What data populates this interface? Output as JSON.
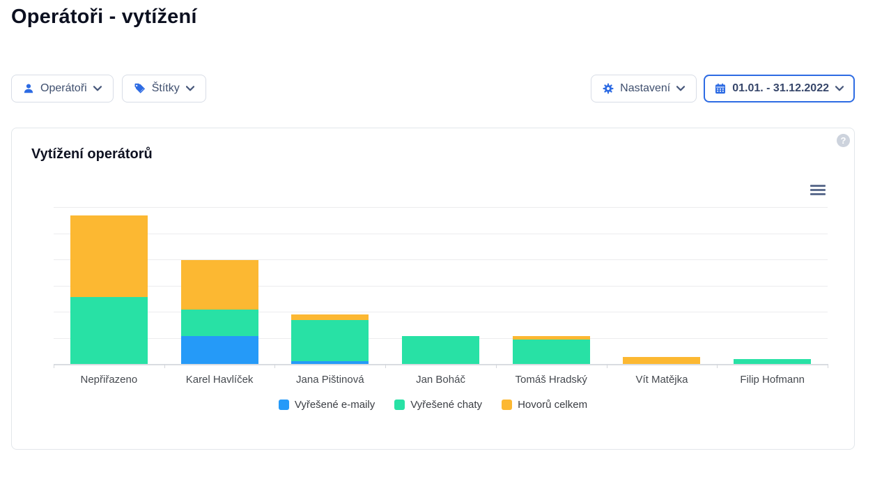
{
  "page": {
    "title": "Operátoři - vytížení"
  },
  "toolbar": {
    "operators": {
      "label": "Operátoři"
    },
    "tags": {
      "label": "Štítky"
    },
    "settings": {
      "label": "Nastavení"
    },
    "date_range": {
      "label": "01.01. - 31.12.2022"
    }
  },
  "card": {
    "title": "Vytížení operátorů",
    "help_glyph": "?"
  },
  "colors": {
    "accent_blue": "#2d6be3",
    "series_emails": "#259af8",
    "series_chats": "#28e1a5",
    "series_calls": "#fcb832",
    "grid": "#ececee",
    "axis": "#d9dce1"
  },
  "chart_data": {
    "type": "bar",
    "stacked": true,
    "title": "Vytížení operátorů",
    "categories": [
      "Nepřiřazeno",
      "Karel Havlíček",
      "Jana Pištinová",
      "Jan Boháč",
      "Tomáš Hradský",
      "Vít Matějka",
      "Filip Hofmann"
    ],
    "series": [
      {
        "name": "Vyřešené e-maily",
        "color": "#259af8",
        "values": [
          0,
          107,
          11,
          0,
          0,
          0,
          0
        ]
      },
      {
        "name": "Vyřešené chaty",
        "color": "#28e1a5",
        "values": [
          256,
          101,
          157,
          107,
          93,
          0,
          19
        ]
      },
      {
        "name": "Hovorů celkem",
        "color": "#fcb832",
        "values": [
          312,
          189,
          21,
          0,
          13,
          27,
          0
        ]
      }
    ],
    "xlabel": "",
    "ylabel": "",
    "ylim": [
      0,
      600
    ],
    "grid_step": 100,
    "grid": true,
    "y_tick_labels_visible": false,
    "legend_position": "bottom"
  }
}
